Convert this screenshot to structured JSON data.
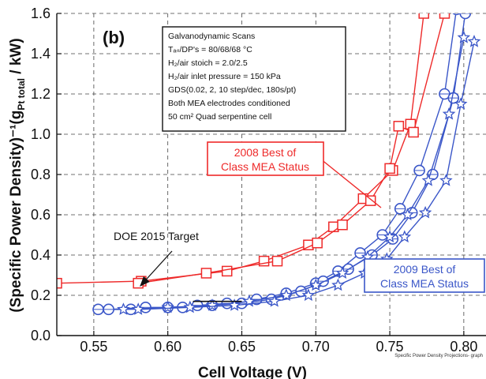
{
  "chart_data": {
    "type": "line",
    "title": "",
    "panel_label": "(b)",
    "xlabel": "Cell Voltage (V)",
    "ylabel": "(Specific Power Density)⁻¹(g",
    "ylabel_sub": "Pt total",
    "ylabel_end": " / kW)",
    "xlim": [
      0.525,
      0.815
    ],
    "ylim": [
      0.0,
      1.6
    ],
    "x_ticks": [
      0.55,
      0.6,
      0.65,
      0.7,
      0.75,
      0.8
    ],
    "x_tick_labels": [
      "0.55",
      "0.60",
      "0.65",
      "0.70",
      "0.75",
      "0.80"
    ],
    "y_ticks": [
      0.0,
      0.2,
      0.4,
      0.6,
      0.8,
      1.0,
      1.2,
      1.4,
      1.6
    ],
    "y_tick_labels": [
      "0.0",
      "0.2",
      "0.4",
      "0.6",
      "0.8",
      "1.0",
      "1.2",
      "1.4",
      "1.6"
    ],
    "grid": true,
    "conditions_text": [
      "Galvanodynamic Scans",
      "Tₐₙ/DP's = 80/68/68 °C",
      "H₂/air stoich = 2.0/2.5",
      "H₂/air inlet pressure = 150 kPa",
      "GDS(0.02, 2, 10 step/dec, 180s/pt)",
      "Both MEA electrodes conditioned",
      "50 cm² Quad serpentine cell"
    ],
    "annotations": {
      "best_2008": [
        "2008 Best of",
        "Class MEA Status"
      ],
      "best_2009": [
        "2009 Best of",
        "Class MEA Status"
      ],
      "doe_target": "DOE 2015 Target"
    },
    "footer_note": "Specific Power Density Projections- graph",
    "colors": {
      "red": "#ee2a2a",
      "blue": "#3a56c8",
      "dark_blue": "#2a3f9e"
    },
    "series": [
      {
        "color": "red",
        "marker": "square",
        "x": [
          0.525,
          0.582,
          0.64,
          0.665,
          0.695,
          0.712,
          0.732,
          0.752,
          0.764,
          0.773,
          0.782
        ],
        "y": [
          0.26,
          0.27,
          0.32,
          0.37,
          0.45,
          0.54,
          0.68,
          0.82,
          1.05,
          1.6,
          1.75
        ]
      },
      {
        "color": "red",
        "marker": "square",
        "x": [
          0.58,
          0.626,
          0.674,
          0.701,
          0.718,
          0.737,
          0.75,
          0.756,
          0.766,
          0.787,
          0.795
        ],
        "y": [
          0.26,
          0.31,
          0.37,
          0.46,
          0.55,
          0.67,
          0.83,
          1.04,
          1.01,
          1.6,
          1.75
        ]
      },
      {
        "color": "blue",
        "marker": "circle",
        "x": [
          0.553,
          0.575,
          0.6,
          0.62,
          0.64,
          0.66,
          0.68,
          0.7,
          0.715,
          0.73,
          0.745,
          0.757,
          0.77,
          0.787,
          0.795
        ],
        "y": [
          0.13,
          0.13,
          0.14,
          0.15,
          0.16,
          0.18,
          0.21,
          0.26,
          0.32,
          0.41,
          0.5,
          0.63,
          0.82,
          1.2,
          1.62
        ]
      },
      {
        "color": "blue",
        "marker": "circle",
        "x": [
          0.56,
          0.585,
          0.61,
          0.63,
          0.65,
          0.67,
          0.69,
          0.705,
          0.722,
          0.738,
          0.752,
          0.765,
          0.779,
          0.793,
          0.801
        ],
        "y": [
          0.13,
          0.14,
          0.14,
          0.15,
          0.16,
          0.18,
          0.22,
          0.27,
          0.33,
          0.4,
          0.48,
          0.61,
          0.8,
          1.18,
          1.6
        ]
      },
      {
        "color": "blue",
        "marker": "star",
        "x": [
          0.57,
          0.6,
          0.63,
          0.655,
          0.68,
          0.7,
          0.718,
          0.735,
          0.75,
          0.762,
          0.776,
          0.79,
          0.8
        ],
        "y": [
          0.13,
          0.14,
          0.15,
          0.17,
          0.2,
          0.25,
          0.31,
          0.39,
          0.49,
          0.6,
          0.77,
          1.1,
          1.48
        ]
      },
      {
        "color": "blue",
        "marker": "star",
        "x": [
          0.58,
          0.615,
          0.645,
          0.672,
          0.695,
          0.715,
          0.733,
          0.748,
          0.76,
          0.774,
          0.788,
          0.798,
          0.807
        ],
        "y": [
          0.13,
          0.14,
          0.15,
          0.17,
          0.2,
          0.25,
          0.31,
          0.38,
          0.49,
          0.61,
          0.77,
          1.15,
          1.46
        ]
      }
    ],
    "target_line": {
      "x": [
        0.617,
        0.65
      ],
      "y": [
        0.17,
        0.17
      ]
    }
  }
}
